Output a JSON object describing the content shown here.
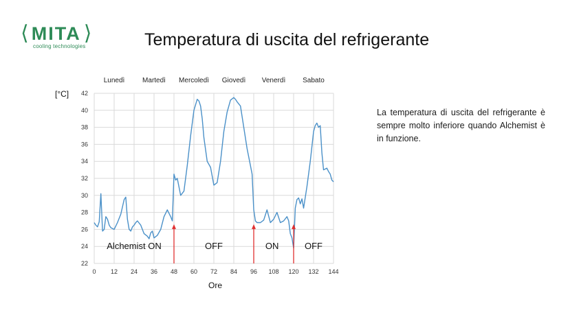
{
  "logo": {
    "name": "MITA",
    "tagline": "cooling technologies"
  },
  "title": "Temperatura di uscita del refrigerante",
  "description": "La temperatura di uscita del refrigerante è sempre molto inferiore quando Alchemist è in funzione.",
  "colors": {
    "brand": "#2e8b57",
    "series": "#4a90c8",
    "marker": "#e03030",
    "grid": "#d9d9d9"
  },
  "chart_data": {
    "type": "line",
    "ylabel": "[°C]",
    "xlabel": "Ore",
    "xlim": [
      0,
      144
    ],
    "ylim": [
      22,
      42
    ],
    "xticks": [
      0,
      12,
      24,
      36,
      48,
      60,
      72,
      84,
      96,
      108,
      120,
      132,
      144
    ],
    "yticks": [
      22,
      24,
      26,
      28,
      30,
      32,
      34,
      36,
      38,
      40,
      42
    ],
    "grid": true,
    "days": [
      {
        "label": "Lunedì",
        "x": 12
      },
      {
        "label": "Martedì",
        "x": 36
      },
      {
        "label": "Mercoledì",
        "x": 60
      },
      {
        "label": "Giovedì",
        "x": 84
      },
      {
        "label": "Venerdì",
        "x": 108
      },
      {
        "label": "Sabato",
        "x": 132
      }
    ],
    "markers": [
      48,
      96,
      120
    ],
    "annotations": [
      {
        "text": "Alchemist ON",
        "x": 24,
        "y": 24
      },
      {
        "text": "OFF",
        "x": 72,
        "y": 24
      },
      {
        "text": "ON",
        "x": 107,
        "y": 24
      },
      {
        "text": "OFF",
        "x": 132,
        "y": 24
      }
    ],
    "series": [
      {
        "x": [
          0,
          1,
          2,
          3,
          4,
          5,
          6,
          7,
          8,
          9,
          10,
          12,
          14,
          16,
          18,
          19,
          20,
          21,
          22,
          23,
          24,
          25,
          26,
          28,
          30,
          32,
          33,
          34,
          35,
          36,
          38,
          40,
          42,
          44,
          46,
          47,
          48,
          49,
          50,
          52,
          54,
          56,
          58,
          60,
          62,
          63,
          64,
          65,
          66,
          68,
          70,
          72,
          74,
          76,
          78,
          80,
          82,
          84,
          85,
          86,
          88,
          90,
          92,
          94,
          95,
          96,
          97,
          98,
          100,
          102,
          104,
          106,
          108,
          110,
          112,
          114,
          116,
          117,
          118,
          119,
          120,
          121,
          122,
          123,
          124,
          125,
          126,
          128,
          130,
          132,
          133,
          134,
          135,
          136,
          137,
          138,
          140,
          141,
          142,
          143,
          144
        ],
        "y": [
          26.8,
          26.5,
          26.3,
          26.9,
          30.2,
          25.8,
          26.0,
          27.5,
          27.2,
          26.5,
          26.2,
          26.0,
          26.8,
          27.8,
          29.5,
          29.8,
          27.2,
          26.0,
          25.8,
          26.3,
          26.5,
          26.8,
          27.0,
          26.5,
          25.5,
          25.2,
          24.9,
          25.6,
          25.8,
          25.0,
          25.3,
          26.0,
          27.5,
          28.3,
          27.5,
          27.0,
          32.5,
          31.8,
          32.0,
          30.0,
          30.5,
          33.5,
          37.0,
          40.0,
          41.3,
          41.1,
          40.5,
          39.0,
          36.8,
          34.0,
          33.3,
          31.2,
          31.5,
          34.0,
          37.5,
          39.8,
          41.2,
          41.5,
          41.3,
          41.0,
          40.5,
          38.0,
          35.5,
          33.5,
          32.5,
          28.3,
          27.0,
          26.8,
          26.8,
          27.1,
          28.3,
          26.8,
          27.2,
          28.0,
          26.8,
          27.0,
          27.5,
          27.0,
          25.5,
          25.0,
          23.8,
          28.5,
          29.5,
          29.7,
          29.0,
          29.6,
          28.5,
          31.0,
          34.0,
          37.5,
          38.2,
          38.5,
          38.0,
          38.2,
          35.0,
          33.0,
          33.2,
          32.8,
          32.5,
          31.8,
          31.6
        ]
      }
    ]
  }
}
